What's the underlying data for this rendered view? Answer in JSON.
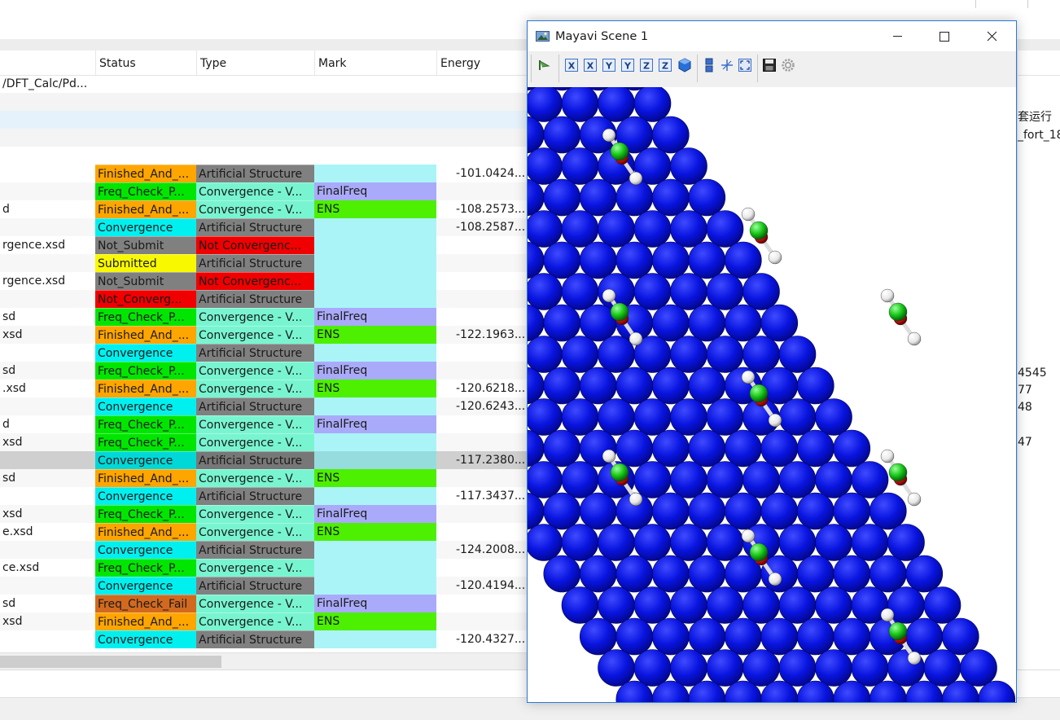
{
  "background_app": {
    "columns": [
      "Status",
      "Type",
      "Mark",
      "Energy"
    ],
    "path_fragment": "/DFT_Calc/Pd...",
    "right_panel_lines": [
      "套运行",
      "_fort_18",
      "4545",
      "77",
      "48",
      "47"
    ],
    "rows": [
      {
        "name": "",
        "status": "Finished_And_...",
        "status_color": "#ffa500",
        "type": "Artificial Structure",
        "type_color": "#808080",
        "mark": "",
        "mark_color": "#aaf4f8",
        "energy": "-101.0424..."
      },
      {
        "name": "",
        "status": "Freq_Check_P...",
        "status_color": "#00e600",
        "type": "Convergence - V...",
        "type_color": "#78f5d0",
        "mark": "FinalFreq",
        "mark_color": "#aaaafa",
        "energy": ""
      },
      {
        "name": "d",
        "status": "Finished_And_...",
        "status_color": "#ffa500",
        "type": "Convergence - V...",
        "type_color": "#78f5d0",
        "mark": "ENS",
        "mark_color": "#4cf000",
        "energy": "-108.2573..."
      },
      {
        "name": "",
        "status": "Convergence",
        "status_color": "#00f0f0",
        "type": "Artificial Structure",
        "type_color": "#808080",
        "mark": "",
        "mark_color": "#aaf4f8",
        "energy": "-108.2587..."
      },
      {
        "name": "rgence.xsd",
        "status": "Not_Submit",
        "status_color": "#808080",
        "type": "Not Convergenc...",
        "type_color": "#f00000",
        "mark": "",
        "mark_color": "#aaf4f8",
        "energy": ""
      },
      {
        "name": "",
        "status": "Submitted",
        "status_color": "#f8f800",
        "type": "Artificial Structure",
        "type_color": "#808080",
        "mark": "",
        "mark_color": "#aaf4f8",
        "energy": ""
      },
      {
        "name": "rgence.xsd",
        "status": "Not_Submit",
        "status_color": "#808080",
        "type": "Not Convergenc...",
        "type_color": "#f00000",
        "mark": "",
        "mark_color": "#aaf4f8",
        "energy": ""
      },
      {
        "name": "",
        "status": "Not_Converg...",
        "status_color": "#f00000",
        "type": "Artificial Structure",
        "type_color": "#808080",
        "mark": "",
        "mark_color": "#aaf4f8",
        "energy": ""
      },
      {
        "name": "sd",
        "status": "Freq_Check_P...",
        "status_color": "#00e600",
        "type": "Convergence - V...",
        "type_color": "#78f5d0",
        "mark": "FinalFreq",
        "mark_color": "#aaaafa",
        "energy": ""
      },
      {
        "name": "xsd",
        "status": "Finished_And_...",
        "status_color": "#ffa500",
        "type": "Convergence - V...",
        "type_color": "#78f5d0",
        "mark": "ENS",
        "mark_color": "#4cf000",
        "energy": "-122.1963..."
      },
      {
        "name": "",
        "status": "Convergence",
        "status_color": "#00f0f0",
        "type": "Artificial Structure",
        "type_color": "#808080",
        "mark": "",
        "mark_color": "#aaf4f8",
        "energy": ""
      },
      {
        "name": "sd",
        "status": "Freq_Check_P...",
        "status_color": "#00e600",
        "type": "Convergence - V...",
        "type_color": "#78f5d0",
        "mark": "FinalFreq",
        "mark_color": "#aaaafa",
        "energy": ""
      },
      {
        "name": ".xsd",
        "status": "Finished_And_...",
        "status_color": "#ffa500",
        "type": "Convergence - V...",
        "type_color": "#78f5d0",
        "mark": "ENS",
        "mark_color": "#4cf000",
        "energy": "-120.6218..."
      },
      {
        "name": "",
        "status": "Convergence",
        "status_color": "#00f0f0",
        "type": "Artificial Structure",
        "type_color": "#808080",
        "mark": "",
        "mark_color": "#aaf4f8",
        "energy": "-120.6243..."
      },
      {
        "name": "d",
        "status": "Freq_Check_P...",
        "status_color": "#00e600",
        "type": "Convergence - V...",
        "type_color": "#78f5d0",
        "mark": "FinalFreq",
        "mark_color": "#aaaafa",
        "energy": ""
      },
      {
        "name": "xsd",
        "status": "Freq_Check_P...",
        "status_color": "#00e600",
        "type": "Convergence - V...",
        "type_color": "#78f5d0",
        "mark": "",
        "mark_color": "#aaf4f8",
        "energy": ""
      },
      {
        "name": "",
        "status": "Convergence",
        "status_color": "#00d8d8",
        "type": "Artificial Structure",
        "type_color": "#777777",
        "mark": "",
        "mark_color": "#96dcde",
        "energy": "-117.2380...",
        "selected": true
      },
      {
        "name": "sd",
        "status": "Finished_And_...",
        "status_color": "#ffa500",
        "type": "Convergence - V...",
        "type_color": "#78f5d0",
        "mark": "ENS",
        "mark_color": "#4cf000",
        "energy": ""
      },
      {
        "name": "",
        "status": "Convergence",
        "status_color": "#00f0f0",
        "type": "Artificial Structure",
        "type_color": "#808080",
        "mark": "",
        "mark_color": "#aaf4f8",
        "energy": "-117.3437..."
      },
      {
        "name": "xsd",
        "status": "Freq_Check_P...",
        "status_color": "#00e600",
        "type": "Convergence - V...",
        "type_color": "#78f5d0",
        "mark": "FinalFreq",
        "mark_color": "#aaaafa",
        "energy": ""
      },
      {
        "name": "e.xsd",
        "status": "Finished_And_...",
        "status_color": "#ffa500",
        "type": "Convergence - V...",
        "type_color": "#78f5d0",
        "mark": "ENS",
        "mark_color": "#4cf000",
        "energy": ""
      },
      {
        "name": "",
        "status": "Convergence",
        "status_color": "#00f0f0",
        "type": "Artificial Structure",
        "type_color": "#808080",
        "mark": "",
        "mark_color": "#aaf4f8",
        "energy": "-124.2008..."
      },
      {
        "name": "ce.xsd",
        "status": "Freq_Check_P...",
        "status_color": "#00e600",
        "type": "Convergence - V...",
        "type_color": "#78f5d0",
        "mark": "",
        "mark_color": "#aaf4f8",
        "energy": ""
      },
      {
        "name": "",
        "status": "Convergence",
        "status_color": "#00f0f0",
        "type": "Artificial Structure",
        "type_color": "#808080",
        "mark": "",
        "mark_color": "#aaf4f8",
        "energy": "-120.4194..."
      },
      {
        "name": "sd",
        "status": "Freq_Check_Fail",
        "status_color": "#d2691e",
        "type": "Convergence - V...",
        "type_color": "#78f5d0",
        "mark": "FinalFreq",
        "mark_color": "#aaaafa",
        "energy": ""
      },
      {
        "name": "xsd",
        "status": "Finished_And_...",
        "status_color": "#ffa500",
        "type": "Convergence - V...",
        "type_color": "#78f5d0",
        "mark": "ENS",
        "mark_color": "#4cf000",
        "energy": ""
      },
      {
        "name": "",
        "status": "Convergence",
        "status_color": "#00f0f0",
        "type": "Artificial Structure",
        "type_color": "#808080",
        "mark": "",
        "mark_color": "#aaf4f8",
        "energy": "-120.4327..."
      }
    ]
  },
  "mayavi": {
    "title": "Mayavi Scene 1",
    "window_buttons": [
      "minimize-icon",
      "maximize-icon",
      "close-icon"
    ],
    "toolbar_tools": [
      {
        "icon": "pipeline-icon"
      },
      {
        "icon": "view-x-plus-icon",
        "glyph": "X"
      },
      {
        "icon": "view-x-minus-icon",
        "glyph": "X"
      },
      {
        "icon": "view-y-plus-icon",
        "glyph": "Y"
      },
      {
        "icon": "view-y-minus-icon",
        "glyph": "Y"
      },
      {
        "icon": "view-z-plus-icon",
        "glyph": "Z"
      },
      {
        "icon": "view-z-minus-icon",
        "glyph": "Z"
      },
      {
        "icon": "isometric-view-icon"
      },
      {
        "icon": "parallel-projection-icon"
      },
      {
        "icon": "axes-toggle-icon"
      },
      {
        "icon": "full-screen-icon"
      },
      {
        "icon": "save-icon"
      },
      {
        "icon": "settings-icon"
      }
    ],
    "colors": {
      "slab_atom": "#0a13e6",
      "adsorbate_center": "#1ec81e",
      "adsorbate_oxygen": "#d01010",
      "hydrogen": "#f2f2f2",
      "background": "#ffffff"
    }
  }
}
